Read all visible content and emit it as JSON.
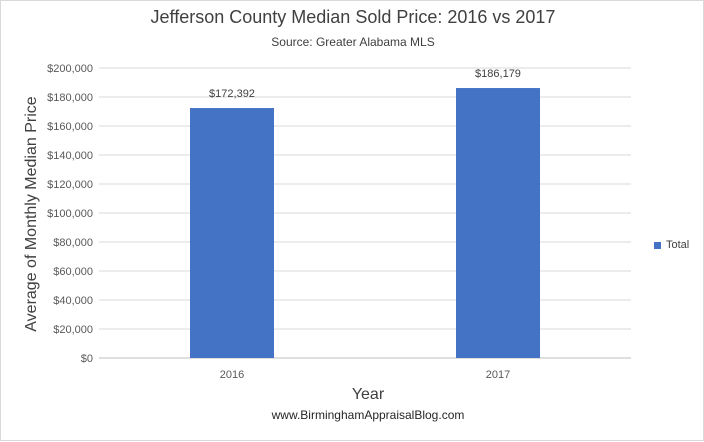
{
  "chart_data": {
    "type": "bar",
    "title": "Jefferson County Median Sold Price: 2016 vs 2017",
    "subtitle": "Source: Greater Alabama MLS",
    "xlabel": "Year",
    "ylabel": "Average of Monthly Median Price",
    "categories": [
      "2016",
      "2017"
    ],
    "series": [
      {
        "name": "Total",
        "values": [
          172392,
          186179
        ],
        "color": "#4472c4"
      }
    ],
    "data_labels": [
      "$172,392",
      "$186,179"
    ],
    "ylim": [
      0,
      200000
    ],
    "yticks": [
      0,
      20000,
      40000,
      60000,
      80000,
      100000,
      120000,
      140000,
      160000,
      180000,
      200000
    ],
    "ytick_labels": [
      "$0",
      "$20,000",
      "$40,000",
      "$60,000",
      "$80,000",
      "$100,000",
      "$120,000",
      "$140,000",
      "$160,000",
      "$180,000",
      "$200,000"
    ],
    "grid": true,
    "gridline_color": "#d9d9d9",
    "legend_position": "right",
    "footer": "www.BirminghamAppraisalBlog.com"
  }
}
